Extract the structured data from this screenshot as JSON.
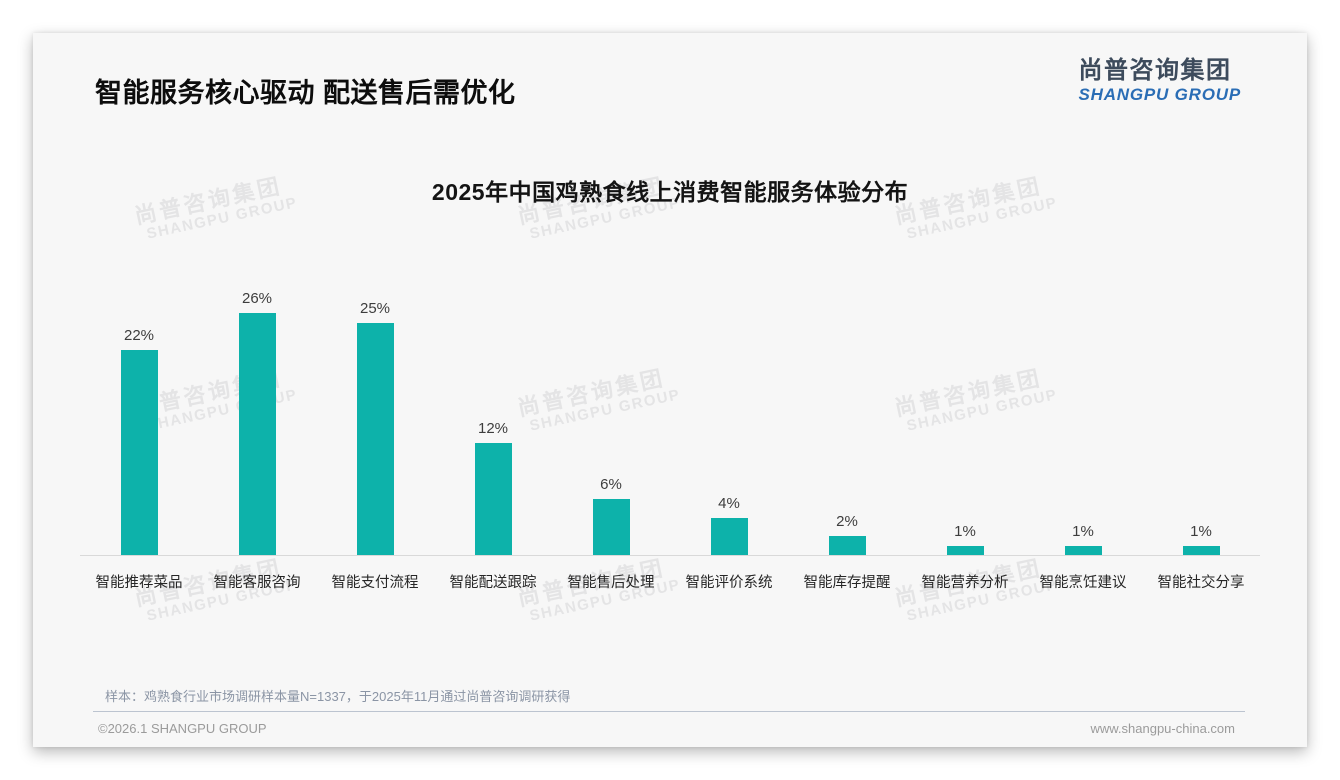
{
  "header": {
    "title": "智能服务核心驱动 配送售后需优化"
  },
  "logo": {
    "chinese": "尚普咨询集团",
    "english": "SHANGPU GROUP"
  },
  "watermark": {
    "chinese": "尚普咨询集团",
    "english": "SHANGPU GROUP"
  },
  "chart_data": {
    "type": "bar",
    "title": "2025年中国鸡熟食线上消费智能服务体验分布",
    "categories": [
      "智能推荐菜品",
      "智能客服咨询",
      "智能支付流程",
      "智能配送跟踪",
      "智能售后处理",
      "智能评价系统",
      "智能库存提醒",
      "智能营养分析",
      "智能烹饪建议",
      "智能社交分享"
    ],
    "values": [
      22,
      26,
      25,
      12,
      6,
      4,
      2,
      1,
      1,
      1
    ],
    "unit": "%",
    "bar_color": "#0db2aa",
    "xlabel": "",
    "ylabel": "",
    "ylim": [
      0,
      28
    ],
    "grid": false,
    "legend": false,
    "data_labels": true
  },
  "footer": {
    "sample_note": "样本：鸡熟食行业市场调研样本量N=1337，于2025年11月通过尚普咨询调研获得",
    "copyright": "©2026.1 SHANGPU GROUP",
    "website": "www.shangpu-china.com"
  }
}
